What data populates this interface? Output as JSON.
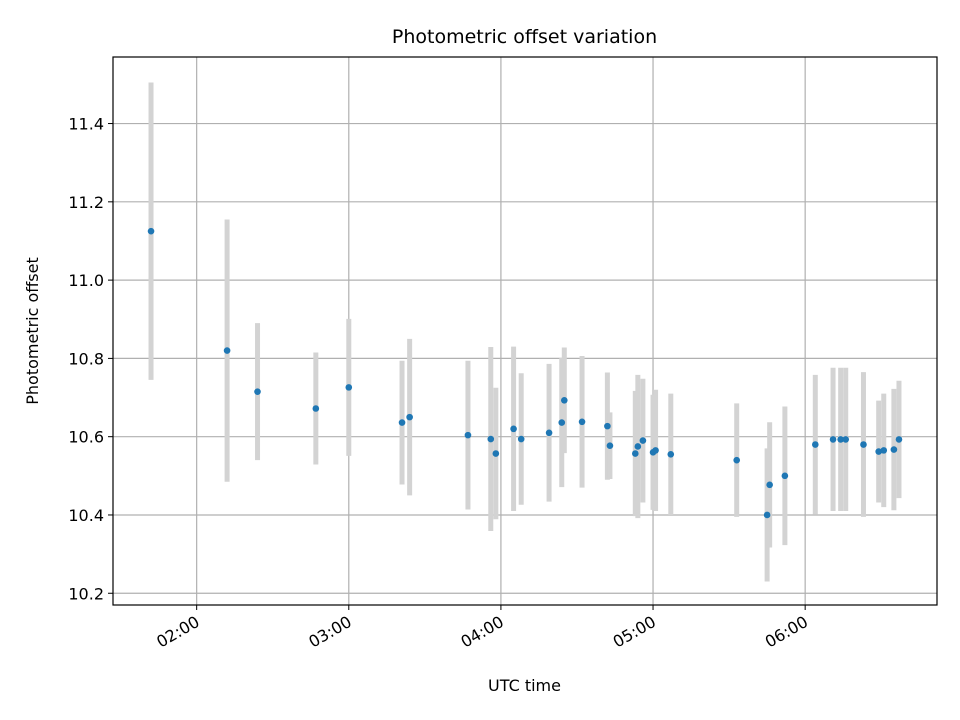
{
  "chart_data": {
    "type": "scatter",
    "title": "Photometric offset variation",
    "xlabel": "UTC time",
    "ylabel": "Photometric offset",
    "x_unit": "UTC",
    "xlim": [
      "01:27",
      "06:52"
    ],
    "ylim": [
      10.17,
      11.57
    ],
    "x_ticks": [
      "02:00",
      "03:00",
      "04:00",
      "05:00",
      "06:00"
    ],
    "y_ticks": [
      "10.2",
      "10.4",
      "10.6",
      "10.8",
      "11.0",
      "11.2",
      "11.4"
    ],
    "grid": true,
    "colors": {
      "point": "#1f77b4",
      "errorbar": "#d3d3d3",
      "grid": "#b0b0b0"
    },
    "points": [
      {
        "x": "01:42",
        "y": 11.125,
        "err": 0.38
      },
      {
        "x": "02:12",
        "y": 10.82,
        "err": 0.335
      },
      {
        "x": "02:24",
        "y": 10.715,
        "err": 0.175
      },
      {
        "x": "02:47",
        "y": 10.672,
        "err": 0.143
      },
      {
        "x": "03:00",
        "y": 10.726,
        "err": 0.175
      },
      {
        "x": "03:21",
        "y": 10.636,
        "err": 0.158
      },
      {
        "x": "03:24",
        "y": 10.65,
        "err": 0.2
      },
      {
        "x": "03:47",
        "y": 10.604,
        "err": 0.19
      },
      {
        "x": "03:56",
        "y": 10.594,
        "err": 0.235
      },
      {
        "x": "03:58",
        "y": 10.557,
        "err": 0.168
      },
      {
        "x": "04:05",
        "y": 10.62,
        "err": 0.21
      },
      {
        "x": "04:08",
        "y": 10.594,
        "err": 0.168
      },
      {
        "x": "04:19",
        "y": 10.61,
        "err": 0.176
      },
      {
        "x": "04:24",
        "y": 10.636,
        "err": 0.165
      },
      {
        "x": "04:25",
        "y": 10.693,
        "err": 0.135
      },
      {
        "x": "04:32",
        "y": 10.638,
        "err": 0.168
      },
      {
        "x": "04:42",
        "y": 10.627,
        "err": 0.137
      },
      {
        "x": "04:43",
        "y": 10.577,
        "err": 0.085
      },
      {
        "x": "04:53",
        "y": 10.557,
        "err": 0.16
      },
      {
        "x": "04:54",
        "y": 10.575,
        "err": 0.183
      },
      {
        "x": "04:56",
        "y": 10.59,
        "err": 0.158
      },
      {
        "x": "05:00",
        "y": 10.56,
        "err": 0.147
      },
      {
        "x": "05:01",
        "y": 10.565,
        "err": 0.155
      },
      {
        "x": "05:07",
        "y": 10.555,
        "err": 0.155
      },
      {
        "x": "05:33",
        "y": 10.54,
        "err": 0.145
      },
      {
        "x": "05:45",
        "y": 10.4,
        "err": 0.17
      },
      {
        "x": "05:46",
        "y": 10.477,
        "err": 0.16
      },
      {
        "x": "05:52",
        "y": 10.5,
        "err": 0.177
      },
      {
        "x": "06:04",
        "y": 10.58,
        "err": 0.178
      },
      {
        "x": "06:11",
        "y": 10.593,
        "err": 0.183
      },
      {
        "x": "06:14",
        "y": 10.593,
        "err": 0.183
      },
      {
        "x": "06:16",
        "y": 10.593,
        "err": 0.183
      },
      {
        "x": "06:23",
        "y": 10.58,
        "err": 0.185
      },
      {
        "x": "06:29",
        "y": 10.562,
        "err": 0.13
      },
      {
        "x": "06:31",
        "y": 10.565,
        "err": 0.145
      },
      {
        "x": "06:35",
        "y": 10.567,
        "err": 0.155
      },
      {
        "x": "06:37",
        "y": 10.593,
        "err": 0.15
      }
    ]
  }
}
